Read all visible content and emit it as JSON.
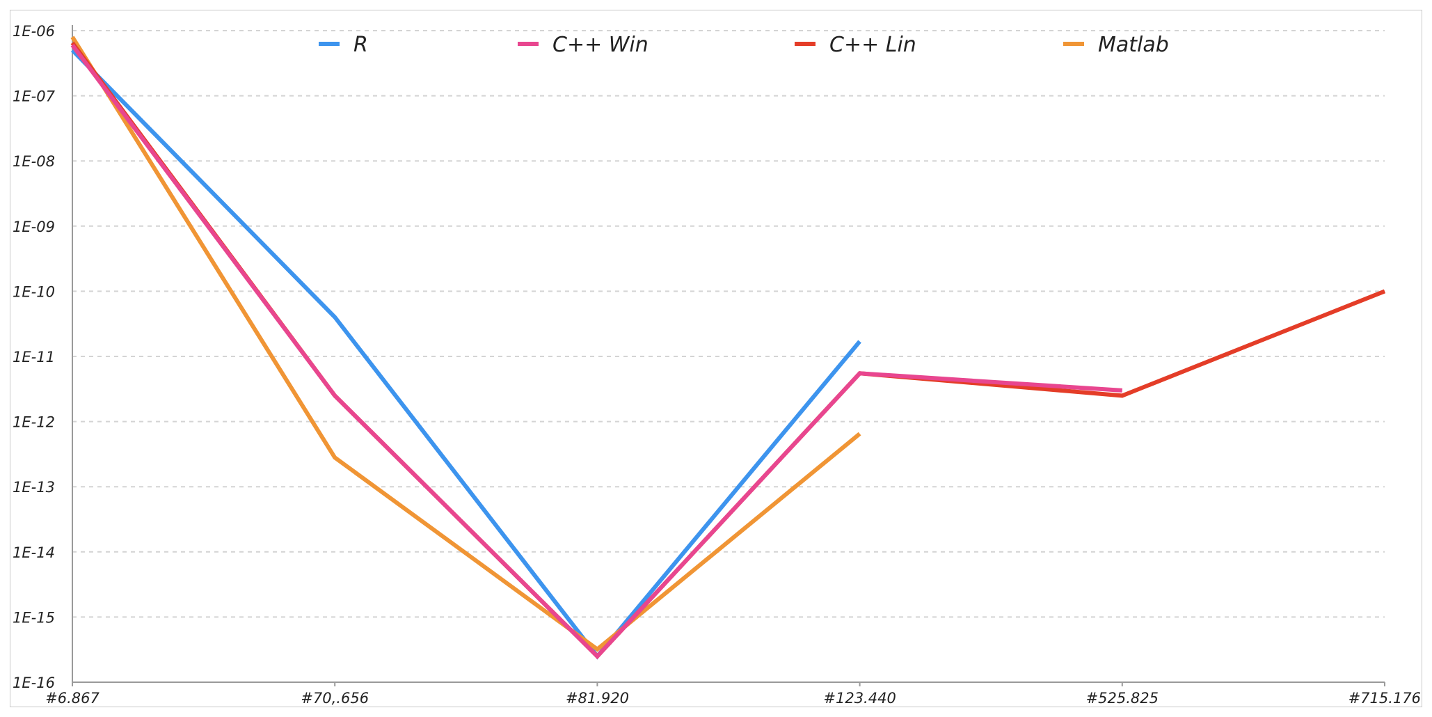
{
  "chart_data": {
    "type": "line",
    "title": "",
    "xlabel": "",
    "ylabel": "",
    "y_scale": "log",
    "ylim": [
      1e-16,
      1e-06
    ],
    "y_ticks": [
      "1E-16",
      "1E-15",
      "1E-14",
      "1E-13",
      "1E-12",
      "1E-11",
      "1E-10",
      "1E-09",
      "1E-08",
      "1E-07",
      "1E-06"
    ],
    "categories": [
      "#6.867",
      "#70,.656",
      "#81.920",
      "#123.440",
      "#525.825",
      "#715.176"
    ],
    "grid": true,
    "legend_position": "top",
    "series": [
      {
        "name": "R",
        "color": "#3d94ee",
        "values": [
          5e-07,
          4e-11,
          2.5e-16,
          1.7e-11,
          null,
          null
        ]
      },
      {
        "name": "C++ Win",
        "color": "#e8468f",
        "values": [
          6e-07,
          2.5e-12,
          2.5e-16,
          5.5e-12,
          3e-12,
          null
        ]
      },
      {
        "name": "C++ Lin",
        "color": "#e43d28",
        "values": [
          6.5e-07,
          2.5e-12,
          2.5e-16,
          5.5e-12,
          2.5e-12,
          1e-10
        ]
      },
      {
        "name": "Matlab",
        "color": "#f09535",
        "values": [
          8e-07,
          2.8e-13,
          3.2e-16,
          6.5e-13,
          null,
          null
        ]
      }
    ]
  }
}
